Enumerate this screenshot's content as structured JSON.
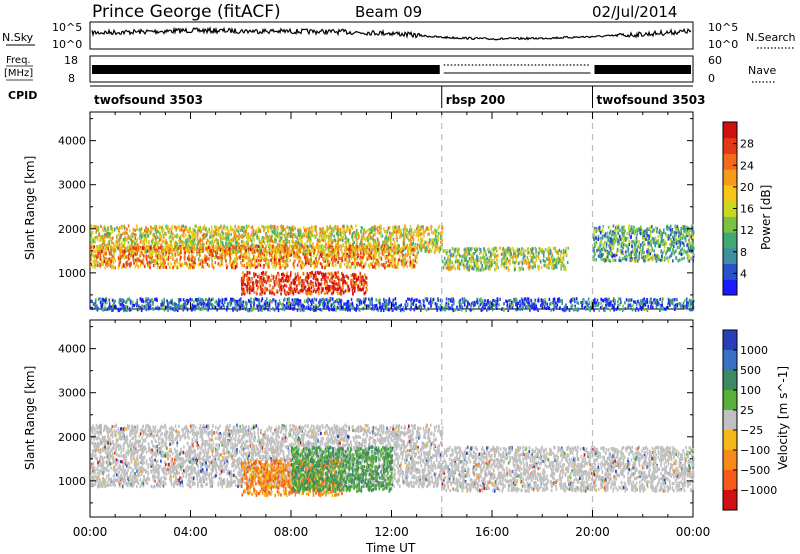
{
  "header": {
    "station": "Prince George (fitACF)",
    "beam": "Beam 09",
    "date": "02/Jul/2014"
  },
  "chart_data": [
    {
      "type": "line",
      "panel": "sky-noise",
      "left_label": "N.Sky",
      "right_label": "N.Search",
      "left_ticks": [
        "10^5",
        "10^0"
      ],
      "right_ticks": [
        "10^5",
        "10^0"
      ],
      "series": [
        {
          "name": "N.Sky",
          "style": "solid",
          "x": [
            "00:00",
            "02:00",
            "04:00",
            "06:00",
            "08:00",
            "10:00",
            "12:00",
            "14:00",
            "16:00",
            "18:00",
            "20:00",
            "22:00",
            "24:00"
          ],
          "level": [
            0.62,
            0.66,
            0.72,
            0.7,
            0.68,
            0.66,
            0.6,
            0.42,
            0.35,
            0.38,
            0.45,
            0.55,
            0.7
          ]
        },
        {
          "name": "N.Search",
          "style": "dotted"
        }
      ]
    },
    {
      "type": "line",
      "panel": "frequency",
      "left_label_lines": [
        "Freq.",
        "[MHz]"
      ],
      "left_ticks": [
        18,
        8
      ],
      "right_label": "Nave",
      "right_ticks": [
        60,
        0
      ],
      "segments": [
        {
          "start": "00:00",
          "end": "14:00",
          "style": "solid-band"
        },
        {
          "start": "14:00",
          "end": "20:00",
          "style": "dotted"
        },
        {
          "start": "20:00",
          "end": "24:00",
          "style": "solid-band"
        }
      ]
    },
    {
      "type": "table",
      "panel": "cpid",
      "label": "CPID",
      "segments": [
        {
          "start": "00:00",
          "end": "14:00",
          "name": "twofsound 3503"
        },
        {
          "start": "14:00",
          "end": "20:00",
          "name": "rbsp 200"
        },
        {
          "start": "20:00",
          "end": "24:00",
          "name": "twofsound 3503"
        }
      ]
    },
    {
      "type": "heatmap",
      "panel": "power",
      "ylabel": "Slant Range [km]",
      "yticks": [
        1000,
        2000,
        3000,
        4000
      ],
      "ylim": [
        180,
        4650
      ],
      "colorbar_label": "Power [dB]",
      "colorbar_ticks": [
        4,
        8,
        12,
        16,
        20,
        24,
        28
      ],
      "colorbar_range": [
        0,
        32
      ],
      "colors": [
        "#1a1aff",
        "#2a52c8",
        "#3f8fa0",
        "#3fa873",
        "#7cc242",
        "#c8d820",
        "#f5c518",
        "#f59a1a",
        "#f56a1a",
        "#e23a14",
        "#d01010"
      ],
      "echo_bands": [
        {
          "from": "00:00",
          "to": "14:00",
          "center_km": 1800,
          "width_km": 300,
          "power": 17
        },
        {
          "from": "00:00",
          "to": "13:00",
          "center_km": 1400,
          "width_km": 250,
          "power": 22
        },
        {
          "from": "06:00",
          "to": "11:00",
          "center_km": 800,
          "width_km": 250,
          "power": 29
        },
        {
          "from": "14:00",
          "to": "19:00",
          "center_km": 1350,
          "width_km": 250,
          "power": 14
        },
        {
          "from": "20:00",
          "to": "24:00",
          "center_km": 1700,
          "width_km": 400,
          "power": 10
        },
        {
          "from": "00:00",
          "to": "24:00",
          "center_km": 300,
          "width_km": 150,
          "power": 5
        }
      ],
      "boundary_times": [
        "14:00",
        "20:00"
      ]
    },
    {
      "type": "heatmap",
      "panel": "velocity",
      "ylabel": "Slant Range [km]",
      "yticks": [
        1000,
        2000,
        3000,
        4000
      ],
      "ylim": [
        180,
        4650
      ],
      "colorbar_label": "Velocity [m s^-1]",
      "colorbar_ticks": [
        "1000",
        "500",
        "100",
        "25",
        "−25",
        "−100",
        "−500",
        "−1000"
      ],
      "colors": [
        "#2a3fb8",
        "#3a70c8",
        "#3b8a63",
        "#58b03a",
        "#c0c0c0",
        "#f5b81a",
        "#f58c1a",
        "#f55a1a",
        "#d01010"
      ],
      "echo_bands": [
        {
          "from": "00:00",
          "to": "14:00",
          "center_km": 1600,
          "width_km": 700,
          "velocity": "ground-scatter"
        },
        {
          "from": "06:00",
          "to": "10:00",
          "center_km": 1100,
          "width_km": 400,
          "velocity": -300
        },
        {
          "from": "08:00",
          "to": "12:00",
          "center_km": 1300,
          "width_km": 500,
          "velocity": 200
        },
        {
          "from": "14:00",
          "to": "24:00",
          "center_km": 1300,
          "width_km": 500,
          "velocity": "ground-scatter"
        }
      ],
      "xlabel": "Time UT",
      "xticks": [
        "00:00",
        "04:00",
        "08:00",
        "12:00",
        "16:00",
        "20:00",
        "00:00"
      ],
      "boundary_times": [
        "14:00",
        "20:00"
      ]
    }
  ]
}
